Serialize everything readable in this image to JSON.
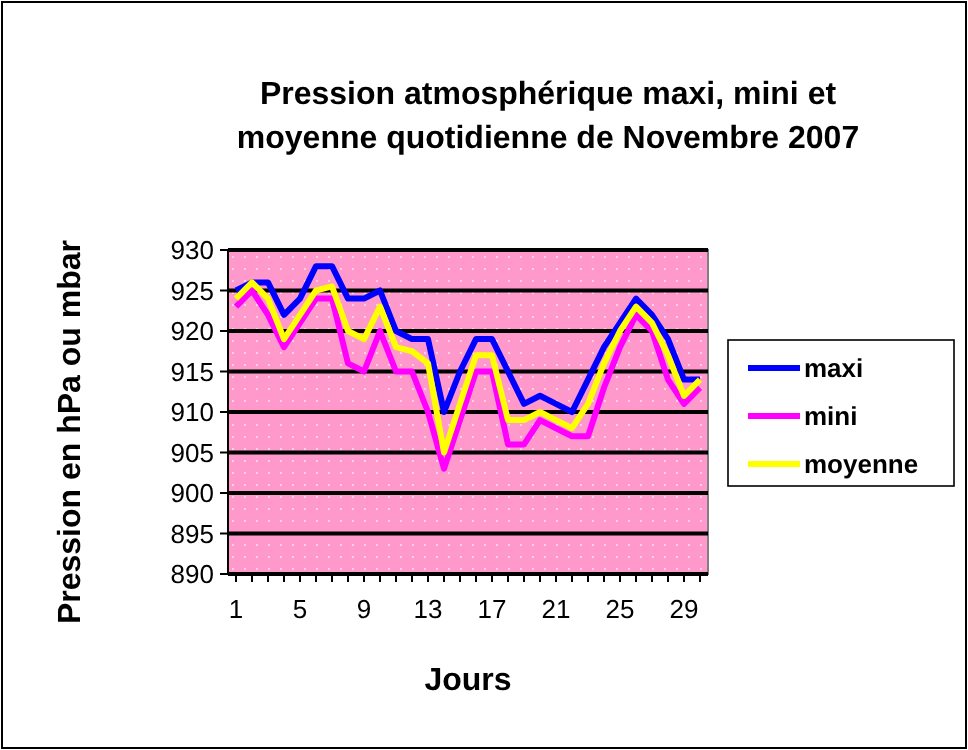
{
  "chart_data": {
    "type": "line",
    "title": "Pression atmosphérique maxi, mini et moyenne quotidienne de Novembre 2007",
    "xlabel": "Jours",
    "ylabel": "Pression en hPa ou mbar",
    "x": [
      1,
      2,
      3,
      4,
      5,
      6,
      7,
      8,
      9,
      10,
      11,
      12,
      13,
      14,
      15,
      16,
      17,
      18,
      19,
      20,
      21,
      22,
      23,
      24,
      25,
      26,
      27,
      28,
      29,
      30
    ],
    "series": [
      {
        "name": "maxi",
        "color": "#0000ff",
        "values": [
          925,
          926,
          926,
          922,
          924,
          928,
          928,
          924,
          924,
          925,
          920,
          919,
          919,
          910,
          915,
          919,
          919,
          915,
          911,
          912,
          911,
          910,
          914,
          918,
          921,
          924,
          922,
          919,
          914,
          914
        ]
      },
      {
        "name": "mini",
        "color": "#ff00ff",
        "values": [
          923,
          925,
          922,
          918,
          921,
          924,
          924,
          916,
          915,
          920,
          915,
          915,
          910,
          903,
          909,
          915,
          915,
          906,
          906,
          909,
          908,
          907,
          907,
          913,
          918,
          922,
          920,
          914,
          911,
          913
        ]
      },
      {
        "name": "moyenne",
        "color": "#ffff00",
        "values": [
          924,
          926,
          924,
          919,
          922,
          925,
          925.5,
          920,
          919,
          923,
          918,
          917.5,
          916,
          905,
          911,
          917,
          917,
          909,
          909,
          910,
          909,
          908,
          911,
          916,
          920,
          923,
          921,
          917,
          912,
          914
        ]
      }
    ],
    "xlim": [
      0.5,
      30.5
    ],
    "xticks": [
      1,
      {
        "value": 2,
        "label": null
      },
      {
        "value": 3,
        "label": null
      },
      {
        "value": 4,
        "label": null
      },
      5,
      {
        "value": 6,
        "label": null
      },
      {
        "value": 7,
        "label": null
      },
      {
        "value": 8,
        "label": null
      },
      9,
      {
        "value": 10,
        "label": null
      },
      {
        "value": 11,
        "label": null
      },
      {
        "value": 12,
        "label": null
      },
      13,
      {
        "value": 14,
        "label": null
      },
      {
        "value": 15,
        "label": null
      },
      {
        "value": 16,
        "label": null
      },
      17,
      {
        "value": 18,
        "label": null
      },
      {
        "value": 19,
        "label": null
      },
      {
        "value": 20,
        "label": null
      },
      21,
      {
        "value": 22,
        "label": null
      },
      {
        "value": 23,
        "label": null
      },
      {
        "value": 24,
        "label": null
      },
      25,
      {
        "value": 26,
        "label": null
      },
      {
        "value": 27,
        "label": null
      },
      {
        "value": 28,
        "label": null
      },
      29,
      {
        "value": 30,
        "label": null
      }
    ],
    "ylim": [
      890,
      930
    ],
    "yticks": [
      890,
      895,
      900,
      905,
      910,
      915,
      920,
      925,
      930
    ],
    "grid": "y",
    "legend": "right",
    "marker": "none",
    "line_style": "solid"
  }
}
